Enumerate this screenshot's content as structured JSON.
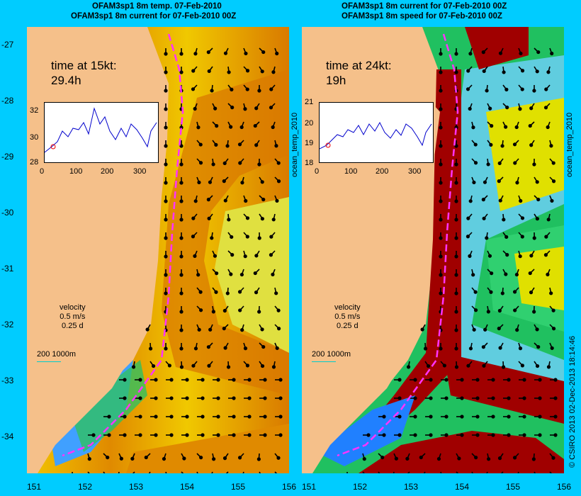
{
  "left": {
    "title_line1": "OFAM3sp1 8m temp. 07-Feb-2010",
    "title_line2": "OFAM3sp1 8m current for 07-Feb-2010 00Z",
    "travel_label": "time at 15kt:",
    "travel_value": "29.4h",
    "inset_yticks": [
      "32",
      "30",
      "28"
    ],
    "inset_xticks": [
      "0",
      "100",
      "200",
      "300"
    ],
    "side_label": "ocean_temp_2010"
  },
  "right": {
    "title_line1": "OFAM3sp1 8m current for 07-Feb-2010 00Z",
    "title_line2": "OFAM3sp1 8m speed for 07-Feb-2010 00Z",
    "travel_label": "time at 24kt:",
    "travel_value": "19h",
    "inset_yticks": [
      "21",
      "20",
      "19",
      "18"
    ],
    "inset_xticks": [
      "0",
      "100",
      "200",
      "300"
    ],
    "side_label": "ocean_temp_2010"
  },
  "legend": {
    "velocity_label": "velocity",
    "velocity_speed": "0.5 m/s",
    "velocity_time": "0.25 d",
    "depth_label": "200  1000m"
  },
  "axes": {
    "lat_ticks": [
      "-27",
      "-28",
      "-29",
      "-30",
      "-31",
      "-32",
      "-33",
      "-34"
    ],
    "lon_ticks": [
      "151",
      "152",
      "153",
      "154",
      "155",
      "156"
    ]
  },
  "credit": "© CSIRO 2013   02-Dec-2013 18:14:46",
  "colors": {
    "background": "#00ccff",
    "land": "#f5c08a",
    "route": "#ff33ff",
    "warm": "#d97a00",
    "fast": "#a00000"
  }
}
